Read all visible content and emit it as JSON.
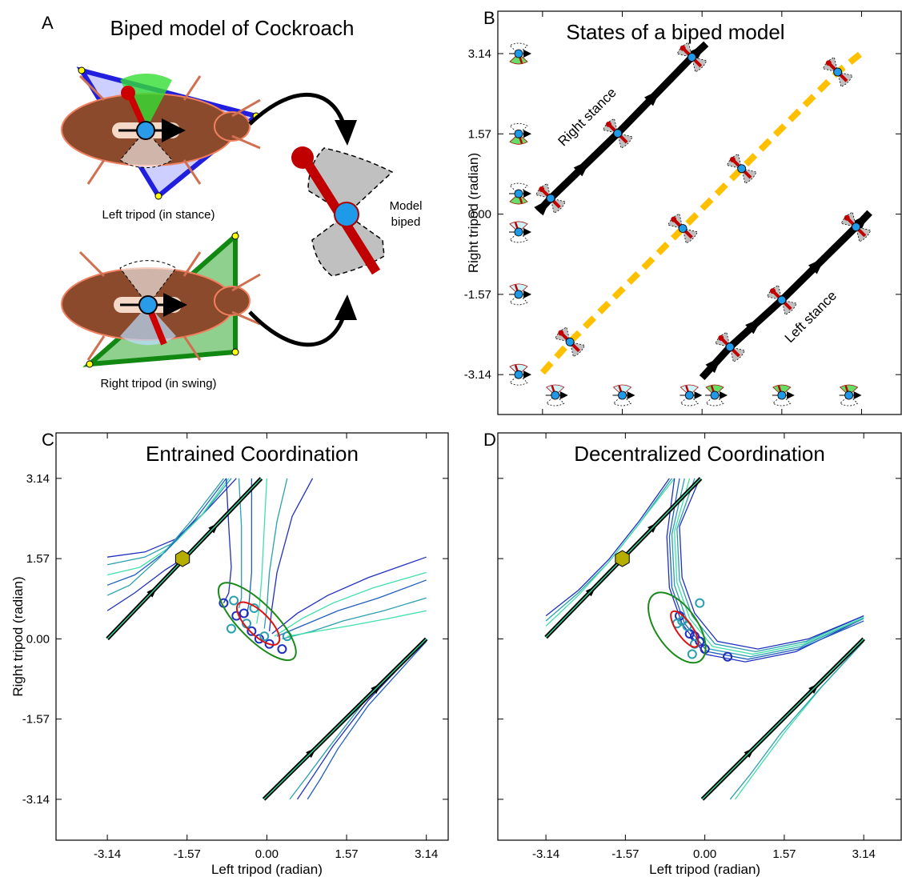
{
  "panel_a": {
    "label": "A",
    "title": "Biped model of Cockroach",
    "left_tripod": "Left tripod (in stance)",
    "right_tripod": "Right tripod (in swing)",
    "model": [
      "Model",
      "biped"
    ]
  },
  "chart_data": [
    {
      "type": "line",
      "label": "B",
      "title": "States of a biped model",
      "ylabel": "Right tripod (radian)",
      "xlim": [
        -4.02,
        3.92
      ],
      "ylim": [
        -3.92,
        3.97
      ],
      "xticks": [
        -3.14,
        -1.57,
        0,
        1.57,
        3.14
      ],
      "xtick_labels": false,
      "yticks": [
        -3.14,
        -1.57,
        {
          "value": 0,
          "label": "0.00"
        },
        1.57,
        3.14
      ],
      "ytick_labels": true,
      "icons": true,
      "annotations": [
        "Right stance",
        "Left stance"
      ],
      "series": [
        {
          "color": "#ffc000",
          "style": "dashed",
          "x": [
            -3.14,
            -2.6,
            -0.38,
            0.78,
            2.67,
            3.2
          ],
          "y": [
            -3.1,
            -2.5,
            -0.28,
            0.89,
            2.78,
            3.2
          ]
        },
        {
          "color": "#000000",
          "style": "thick",
          "x": [
            -3.22,
            -2.98,
            -1.66,
            -0.2,
            0.08
          ],
          "y": [
            0.05,
            0.31,
            1.58,
            3.07,
            3.33
          ]
        },
        {
          "color": "#000000",
          "style": "thick",
          "x": [
            0.0,
            0.55,
            1.57,
            3.03,
            3.3
          ],
          "y": [
            -3.2,
            -2.6,
            -1.68,
            -0.25,
            0.03
          ]
        }
      ]
    },
    {
      "type": "line",
      "label": "C",
      "title": "Entrained Coordination",
      "ylabel": "Right tripod (radian)",
      "xlabel": "Left tripod (radian)",
      "xlim": [
        -4.15,
        3.57
      ],
      "ylim": [
        -3.94,
        4.03
      ],
      "xticks": [
        -3.14,
        -1.57,
        {
          "value": 0,
          "label": "0.00"
        },
        1.57,
        3.14
      ],
      "xtick_labels": true,
      "yticks": [
        -3.14,
        -1.57,
        {
          "value": 0,
          "label": "0.00"
        },
        1.57,
        3.14
      ],
      "ytick_labels": true,
      "marker": {
        "x": -1.66,
        "y": 1.57,
        "color": "#b5ad00"
      },
      "ellipses": [
        {
          "cx": -0.19,
          "cy": 0.34,
          "rx": 1.02,
          "ry": 0.35,
          "angle": -45,
          "color": "#1a8a1a"
        },
        {
          "cx": -0.17,
          "cy": 0.3,
          "rx": 0.55,
          "ry": 0.22,
          "angle": -45,
          "color": "#dd1111"
        }
      ],
      "series": [
        {
          "color": "#1f2fbf",
          "style": "thin",
          "x": [
            -3.14,
            -2.4,
            -1.8,
            -1.2,
            -0.6
          ],
          "y": [
            1.6,
            1.7,
            1.95,
            2.5,
            3.14
          ]
        },
        {
          "color": "#2a9fb0",
          "style": "thin",
          "x": [
            -3.14,
            -2.4,
            -1.8,
            -1.25,
            -0.7
          ],
          "y": [
            1.45,
            1.6,
            1.9,
            2.45,
            3.14
          ]
        },
        {
          "color": "#40e0a8",
          "style": "thin",
          "x": [
            -3.14,
            -2.5,
            -1.9,
            -1.3,
            -0.75
          ],
          "y": [
            1.25,
            1.4,
            1.8,
            2.4,
            3.14
          ]
        },
        {
          "color": "#1f5fc0",
          "style": "thin",
          "x": [
            -3.14,
            -2.6,
            -2.0,
            -1.4,
            -0.8
          ],
          "y": [
            1.05,
            1.25,
            1.7,
            2.35,
            3.14
          ]
        },
        {
          "color": "#2a9fb0",
          "style": "thin",
          "x": [
            -3.14,
            -2.7,
            -2.1,
            -1.5,
            -0.85
          ],
          "y": [
            0.85,
            1.05,
            1.6,
            2.3,
            3.14
          ]
        },
        {
          "color": "#1f2fbf",
          "style": "thin",
          "x": [
            -3.14,
            -2.6,
            -2.0,
            -1.6
          ],
          "y": [
            0.55,
            0.9,
            1.35,
            1.6
          ]
        },
        {
          "color": "#1f2fbf",
          "style": "thin",
          "x": [
            -0.8,
            -0.75,
            -0.7,
            -0.75,
            -0.85
          ],
          "y": [
            3.14,
            2.2,
            1.4,
            0.9,
            0.7
          ]
        },
        {
          "color": "#2a9fb0",
          "style": "thin",
          "x": [
            -0.55,
            -0.5,
            -0.5,
            -0.5,
            -0.55
          ],
          "y": [
            3.14,
            2.2,
            1.3,
            0.8,
            0.6
          ]
        },
        {
          "color": "#1f5fc0",
          "style": "thin",
          "x": [
            -0.3,
            -0.3,
            -0.3,
            -0.35,
            -0.4
          ],
          "y": [
            3.14,
            2.2,
            1.3,
            0.7,
            0.45
          ]
        },
        {
          "color": "#40e0a8",
          "style": "thin",
          "x": [
            0.0,
            -0.05,
            -0.1,
            -0.15,
            -0.2
          ],
          "y": [
            3.14,
            2.2,
            1.2,
            0.6,
            0.3
          ]
        },
        {
          "color": "#2a9fb0",
          "style": "thin",
          "x": [
            0.4,
            0.2,
            0.05,
            0.0,
            -0.05
          ],
          "y": [
            3.14,
            2.3,
            1.3,
            0.6,
            0.2
          ]
        },
        {
          "color": "#1f2fbf",
          "style": "thin",
          "x": [
            0.9,
            0.5,
            0.2,
            0.1,
            0.05
          ],
          "y": [
            3.14,
            2.4,
            1.3,
            0.6,
            0.15
          ]
        },
        {
          "color": "#1f2fbf",
          "style": "thin",
          "x": [
            0.1,
            0.6,
            1.2,
            2.0,
            3.14
          ],
          "y": [
            0.1,
            0.5,
            0.85,
            1.2,
            1.6
          ]
        },
        {
          "color": "#40e0a8",
          "style": "thin",
          "x": [
            0.15,
            0.7,
            1.3,
            2.1,
            3.14
          ],
          "y": [
            0.05,
            0.4,
            0.7,
            1.0,
            1.3
          ]
        },
        {
          "color": "#1f5fc0",
          "style": "thin",
          "x": [
            0.2,
            0.8,
            1.4,
            2.2,
            3.14
          ],
          "y": [
            0.05,
            0.3,
            0.55,
            0.8,
            1.15
          ]
        },
        {
          "color": "#2a9fb0",
          "style": "thin",
          "x": [
            0.3,
            0.9,
            1.5,
            2.3,
            3.14
          ],
          "y": [
            0.0,
            0.15,
            0.35,
            0.55,
            0.8
          ]
        },
        {
          "color": "#40e0a8",
          "style": "thin",
          "x": [
            0.4,
            1.0,
            1.6,
            2.4,
            3.14
          ],
          "y": [
            0.05,
            0.15,
            0.25,
            0.4,
            0.55
          ]
        },
        {
          "color": "#1f2fbf",
          "style": "thin",
          "x": [
            0.6,
            0.9,
            1.3,
            2.0,
            3.14
          ],
          "y": [
            -3.14,
            -2.7,
            -2.1,
            -1.2,
            0.0
          ]
        },
        {
          "color": "#2a9fb0",
          "style": "thin",
          "x": [
            0.45,
            0.75,
            1.2,
            1.9,
            3.14
          ],
          "y": [
            -3.14,
            -2.75,
            -2.15,
            -1.25,
            0.0
          ]
        },
        {
          "color": "#1f5fc0",
          "style": "thin",
          "x": [
            0.8,
            1.05,
            1.4,
            2.0,
            3.14
          ],
          "y": [
            -3.14,
            -2.75,
            -2.15,
            -1.3,
            -0.05
          ]
        },
        {
          "color": "#000000",
          "style": "thick",
          "x": [
            -3.14,
            -0.11
          ],
          "y": [
            0.0,
            3.14
          ]
        },
        {
          "color": "#000000",
          "style": "thick",
          "x": [
            -0.06,
            3.14
          ],
          "y": [
            -3.14,
            0.0
          ]
        },
        {
          "color": "#2ee6a8",
          "style": "thin",
          "x": [
            -3.14,
            -0.11
          ],
          "y": [
            0.0,
            3.14
          ]
        },
        {
          "color": "#2ee6a8",
          "style": "thin",
          "x": [
            -0.06,
            3.14
          ],
          "y": [
            -3.14,
            0.0
          ]
        },
        {
          "color": "#1f2fbf",
          "style": "circles",
          "x": [
            -0.85,
            -0.6,
            -0.45,
            -0.3,
            -0.15,
            0.05,
            0.3
          ],
          "y": [
            0.7,
            0.45,
            0.5,
            0.15,
            0.0,
            -0.1,
            -0.2
          ]
        },
        {
          "color": "#2a9fb0",
          "style": "circles",
          "x": [
            -0.65,
            -0.7,
            -0.4,
            -0.25,
            -0.05,
            0.4
          ],
          "y": [
            0.75,
            0.2,
            0.3,
            0.6,
            0.05,
            0.05
          ]
        }
      ]
    },
    {
      "type": "line",
      "label": "D",
      "title": "Decentralized Coordination",
      "xlabel": "Left tripod (radian)",
      "xlim": [
        -4.09,
        3.88
      ],
      "ylim": [
        -3.94,
        4.03
      ],
      "xticks": [
        -3.14,
        -1.57,
        {
          "value": 0,
          "label": "0.00"
        },
        1.57,
        3.14
      ],
      "xtick_labels": true,
      "yticks": [
        -3.14,
        -1.57,
        0,
        1.57,
        3.14
      ],
      "ytick_labels": false,
      "marker": {
        "x": -1.63,
        "y": 1.57,
        "color": "#b5ad00"
      },
      "ellipses": [
        {
          "cx": -0.55,
          "cy": 0.22,
          "rx": 0.8,
          "ry": 0.4,
          "angle": -55,
          "color": "#1a8a1a"
        },
        {
          "cx": -0.4,
          "cy": 0.19,
          "rx": 0.42,
          "ry": 0.15,
          "angle": -55,
          "color": "#dd1111"
        }
      ],
      "series": [
        {
          "color": "#1f2fbf",
          "style": "thin",
          "x": [
            -3.14,
            -2.5,
            -1.9,
            -1.3,
            -0.7
          ],
          "y": [
            0.45,
            0.95,
            1.55,
            2.3,
            3.14
          ]
        },
        {
          "color": "#2a9fb0",
          "style": "thin",
          "x": [
            -3.14,
            -2.5,
            -1.9,
            -1.3,
            -0.65
          ],
          "y": [
            0.35,
            0.9,
            1.5,
            2.25,
            3.14
          ]
        },
        {
          "color": "#40e0a8",
          "style": "thin",
          "x": [
            -3.14,
            -2.5,
            -1.9,
            -1.3,
            -0.6
          ],
          "y": [
            0.25,
            0.85,
            1.5,
            2.25,
            3.14
          ]
        },
        {
          "color": "#1f2fbf",
          "style": "thin",
          "x": [
            -0.6,
            -0.75,
            -0.7,
            -0.45,
            0.0,
            0.8,
            1.8,
            3.14
          ],
          "y": [
            3.14,
            2.0,
            1.0,
            0.3,
            -0.3,
            -0.45,
            -0.25,
            0.4
          ]
        },
        {
          "color": "#1f5fc0",
          "style": "thin",
          "x": [
            -0.5,
            -0.7,
            -0.65,
            -0.4,
            0.05,
            0.85,
            1.85,
            3.14
          ],
          "y": [
            3.14,
            2.0,
            1.0,
            0.3,
            -0.25,
            -0.4,
            -0.2,
            0.35
          ]
        },
        {
          "color": "#2a9fb0",
          "style": "thin",
          "x": [
            -0.4,
            -0.65,
            -0.6,
            -0.35,
            0.1,
            0.9,
            1.9,
            3.14
          ],
          "y": [
            3.14,
            2.05,
            1.05,
            0.35,
            -0.2,
            -0.35,
            -0.15,
            0.4
          ]
        },
        {
          "color": "#40e0a8",
          "style": "thin",
          "x": [
            -0.3,
            -0.6,
            -0.55,
            -0.3,
            0.15,
            0.95,
            1.95,
            3.14
          ],
          "y": [
            3.14,
            2.1,
            1.1,
            0.4,
            -0.15,
            -0.3,
            -0.1,
            0.42
          ]
        },
        {
          "color": "#2a9fb0",
          "style": "thin",
          "x": [
            -0.2,
            -0.55,
            -0.5,
            -0.25,
            0.2,
            1.0,
            2.0,
            3.14
          ],
          "y": [
            3.14,
            2.15,
            1.15,
            0.45,
            -0.1,
            -0.25,
            -0.05,
            0.45
          ]
        },
        {
          "color": "#1f2fbf",
          "style": "thin",
          "x": [
            -0.1,
            -0.5,
            -0.45,
            -0.2,
            0.25,
            1.05,
            2.05,
            3.14
          ],
          "y": [
            3.14,
            2.2,
            1.2,
            0.5,
            -0.05,
            -0.2,
            0.0,
            0.45
          ]
        },
        {
          "color": "#40e0a8",
          "style": "thin",
          "x": [
            0.6,
            1.0,
            1.6,
            2.3,
            3.14
          ],
          "y": [
            -3.14,
            -2.6,
            -1.8,
            -0.95,
            -0.05
          ]
        },
        {
          "color": "#2a9fb0",
          "style": "thin",
          "x": [
            0.5,
            0.9,
            1.5,
            2.25,
            3.14
          ],
          "y": [
            -3.14,
            -2.65,
            -1.85,
            -1.0,
            -0.05
          ]
        },
        {
          "color": "#000000",
          "style": "thick",
          "x": [
            -3.14,
            -0.08
          ],
          "y": [
            0.03,
            3.14
          ]
        },
        {
          "color": "#000000",
          "style": "thick",
          "x": [
            -0.05,
            3.14
          ],
          "y": [
            -3.14,
            0.0
          ]
        },
        {
          "color": "#2ee6a8",
          "style": "thin",
          "x": [
            -3.14,
            -0.08
          ],
          "y": [
            0.03,
            3.14
          ]
        },
        {
          "color": "#2ee6a8",
          "style": "thin",
          "x": [
            -0.05,
            3.14
          ],
          "y": [
            -3.14,
            0.0
          ]
        },
        {
          "color": "#1f2fbf",
          "style": "circles",
          "x": [
            -0.5,
            -0.3,
            -0.2,
            -0.1,
            0.0,
            0.45
          ],
          "y": [
            0.45,
            0.1,
            0.05,
            -0.05,
            -0.2,
            -0.35
          ]
        },
        {
          "color": "#2a9fb0",
          "style": "circles",
          "x": [
            -0.1,
            -0.45,
            -0.55,
            -0.35,
            -0.25,
            -0.2
          ],
          "y": [
            0.7,
            0.35,
            0.3,
            0.25,
            -0.3,
            -0.1
          ]
        }
      ]
    }
  ]
}
